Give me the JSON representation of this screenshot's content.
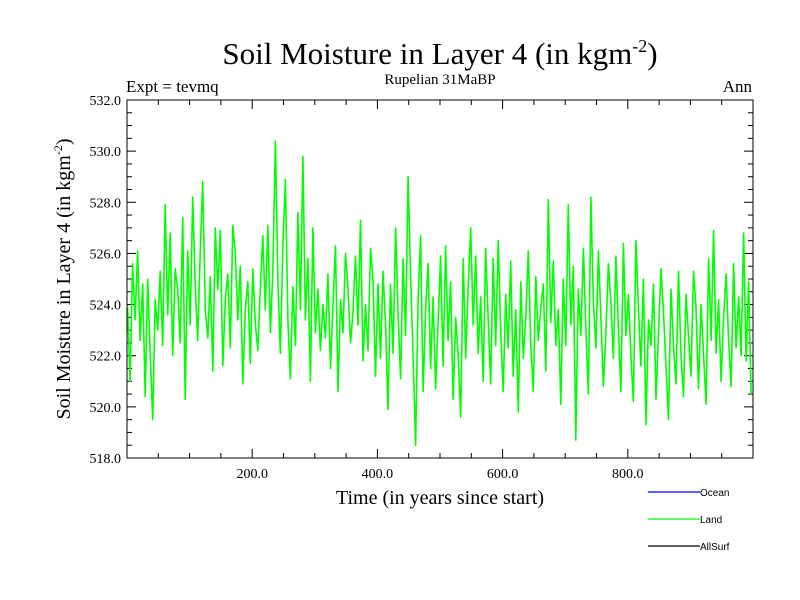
{
  "chart_data": {
    "type": "line",
    "title": "Soil Moisture in Layer 4 (in kgm",
    "title_superscript": "-2",
    "title_close": ")",
    "subtitle_left": "Expt = tevmq",
    "subtitle_center": "Rupelian  31MaBP",
    "subtitle_right": "Ann",
    "xlabel": "Time (in years since start)",
    "ylabel": "Soil Moisture in Layer 4 (in kgm",
    "ylabel_superscript": "-2",
    "ylabel_close": ")",
    "xlim": [
      0,
      1000
    ],
    "ylim": [
      518.0,
      532.0
    ],
    "xticks": [
      200,
      400,
      600,
      800
    ],
    "xtick_labels": [
      "200.0",
      "400.0",
      "600.0",
      "800.0"
    ],
    "yticks": [
      518,
      520,
      522,
      524,
      526,
      528,
      530,
      532
    ],
    "ytick_labels": [
      "518.0",
      "520.0",
      "522.0",
      "524.0",
      "526.0",
      "528.0",
      "530.0",
      "532.0"
    ],
    "series": [
      {
        "name": "Ocean",
        "color": "#0000ff",
        "values": []
      },
      {
        "name": "Land",
        "color": "#00ff00",
        "x_start": 1,
        "x_step": 4,
        "values": [
          523.9,
          521.0,
          525.6,
          523.4,
          526.1,
          522.6,
          524.8,
          520.4,
          525.0,
          522.1,
          519.5,
          524.2,
          523.0,
          525.3,
          522.4,
          527.9,
          523.6,
          526.8,
          522.0,
          525.4,
          524.6,
          522.5,
          527.4,
          520.3,
          526.1,
          523.2,
          528.2,
          524.8,
          522.6,
          526.0,
          528.8,
          523.8,
          522.7,
          525.1,
          521.4,
          527.0,
          524.6,
          526.9,
          521.6,
          524.2,
          525.2,
          522.3,
          527.1,
          526.0,
          523.4,
          525.5,
          520.9,
          523.8,
          524.9,
          521.7,
          525.4,
          523.3,
          522.2,
          524.6,
          526.7,
          523.8,
          527.1,
          522.9,
          525.4,
          530.4,
          524.9,
          522.1,
          526.3,
          528.9,
          523.4,
          521.1,
          524.7,
          522.4,
          527.6,
          523.8,
          529.8,
          523.4,
          525.8,
          521.0,
          527.0,
          522.9,
          524.6,
          522.2,
          524.0,
          522.7,
          525.2,
          521.5,
          524.0,
          526.3,
          520.6,
          524.2,
          522.9,
          526.0,
          524.6,
          522.5,
          523.7,
          525.9,
          523.2,
          527.3,
          521.8,
          524.0,
          522.2,
          526.2,
          525.0,
          521.2,
          524.8,
          521.9,
          525.3,
          523.3,
          519.9,
          524.8,
          522.1,
          527.0,
          523.6,
          521.1,
          525.8,
          522.8,
          529.0,
          525.1,
          522.0,
          518.5,
          524.2,
          526.7,
          520.6,
          523.8,
          525.6,
          521.5,
          524.3,
          520.7,
          523.3,
          525.9,
          521.6,
          526.3,
          522.6,
          524.9,
          520.3,
          523.5,
          522.0,
          519.6,
          525.8,
          521.9,
          524.7,
          527.0,
          523.2,
          525.9,
          522.1,
          524.3,
          521.0,
          526.2,
          523.4,
          520.9,
          525.8,
          522.4,
          526.5,
          523.0,
          520.6,
          524.4,
          522.3,
          525.7,
          521.2,
          523.8,
          519.8,
          524.9,
          521.9,
          523.5,
          526.1,
          522.4,
          520.6,
          525.1,
          522.6,
          523.9,
          524.8,
          521.4,
          528.1,
          523.3,
          525.7,
          522.4,
          523.8,
          520.1,
          525.0,
          522.4,
          527.9,
          523.2,
          525.5,
          518.7,
          524.6,
          522.8,
          526.2,
          523.0,
          520.5,
          528.2,
          524.1,
          522.3,
          526.1,
          523.5,
          520.8,
          522.9,
          525.6,
          524.1,
          521.9,
          525.9,
          523.1,
          520.6,
          526.4,
          522.8,
          524.4,
          522.0,
          520.2,
          526.5,
          523.9,
          521.6,
          525.0,
          519.3,
          523.4,
          522.4,
          524.8,
          520.3,
          522.9,
          525.4,
          523.7,
          521.6,
          519.5,
          524.6,
          522.4,
          520.9,
          525.3,
          522.0,
          520.4,
          524.4,
          522.8,
          521.2,
          525.3,
          523.9,
          520.7,
          524.0,
          522.1,
          520.1,
          525.8,
          522.6,
          526.9,
          522.1,
          524.2,
          521.0,
          523.5,
          525.2,
          522.6,
          520.8,
          525.6,
          522.3,
          524.3,
          522.0,
          526.8,
          521.8,
          524.9,
          520.5
        ]
      },
      {
        "name": "AllSurf",
        "color": "#000000",
        "values": []
      }
    ],
    "legend": {
      "position": "bottom-right",
      "items": [
        {
          "label": "Ocean",
          "color": "#0000ff"
        },
        {
          "label": "Land",
          "color": "#00ff00"
        },
        {
          "label": "AllSurf",
          "color": "#000000"
        }
      ]
    },
    "grid": false
  }
}
